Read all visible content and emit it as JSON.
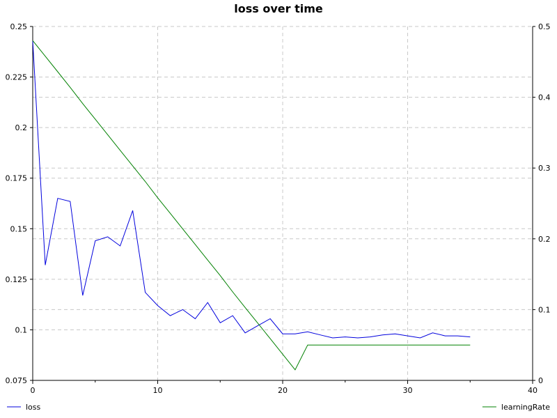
{
  "chart_data": {
    "type": "line",
    "title": "loss over time",
    "xlabel": "",
    "ylabel_left": "",
    "ylabel_right": "",
    "xlim": [
      0,
      40
    ],
    "ylim_left": [
      0.075,
      0.25
    ],
    "ylim_right": [
      0,
      0.5
    ],
    "x_ticks": [
      0,
      10,
      20,
      30,
      40
    ],
    "y_left_ticks": [
      0.075,
      0.1,
      0.125,
      0.15,
      0.175,
      0.2,
      0.225,
      0.25
    ],
    "y_right_ticks": [
      0,
      0.1,
      0.2,
      0.3,
      0.4,
      0.5
    ],
    "grid": true,
    "legend": "bottom",
    "series": [
      {
        "name": "loss",
        "axis": "left",
        "color": "#0000dd",
        "x": [
          0,
          1,
          2,
          3,
          4,
          5,
          6,
          7,
          8,
          9,
          10,
          11,
          12,
          13,
          14,
          15,
          16,
          17,
          18,
          19,
          20,
          21,
          22,
          23,
          24,
          25,
          26,
          27,
          28,
          29,
          30,
          31,
          32,
          33,
          34,
          35
        ],
        "values": [
          0.243,
          0.132,
          0.165,
          0.1635,
          0.117,
          0.144,
          0.146,
          0.1415,
          0.159,
          0.1185,
          0.112,
          0.107,
          0.11,
          0.1055,
          0.1135,
          0.1035,
          0.107,
          0.0985,
          0.102,
          0.1055,
          0.098,
          0.098,
          0.099,
          0.0975,
          0.096,
          0.0965,
          0.096,
          0.0965,
          0.0975,
          0.098,
          0.097,
          0.096,
          0.0985,
          0.097,
          0.097,
          0.0965
        ]
      },
      {
        "name": "learningRate",
        "axis": "right",
        "color": "#008000",
        "x": [
          0,
          1,
          2,
          3,
          4,
          5,
          6,
          7,
          8,
          9,
          10,
          11,
          12,
          13,
          14,
          15,
          16,
          17,
          18,
          19,
          20,
          21,
          22,
          23,
          24,
          25,
          26,
          27,
          28,
          29,
          30,
          31,
          32,
          33,
          34,
          35
        ],
        "values": [
          0.48,
          0.458,
          0.436,
          0.414,
          0.391,
          0.369,
          0.347,
          0.325,
          0.303,
          0.281,
          0.258,
          0.236,
          0.214,
          0.192,
          0.17,
          0.148,
          0.125,
          0.103,
          0.081,
          0.059,
          0.037,
          0.015,
          0.05,
          0.05,
          0.05,
          0.05,
          0.05,
          0.05,
          0.05,
          0.05,
          0.05,
          0.05,
          0.05,
          0.05,
          0.05,
          0.05
        ]
      }
    ]
  }
}
